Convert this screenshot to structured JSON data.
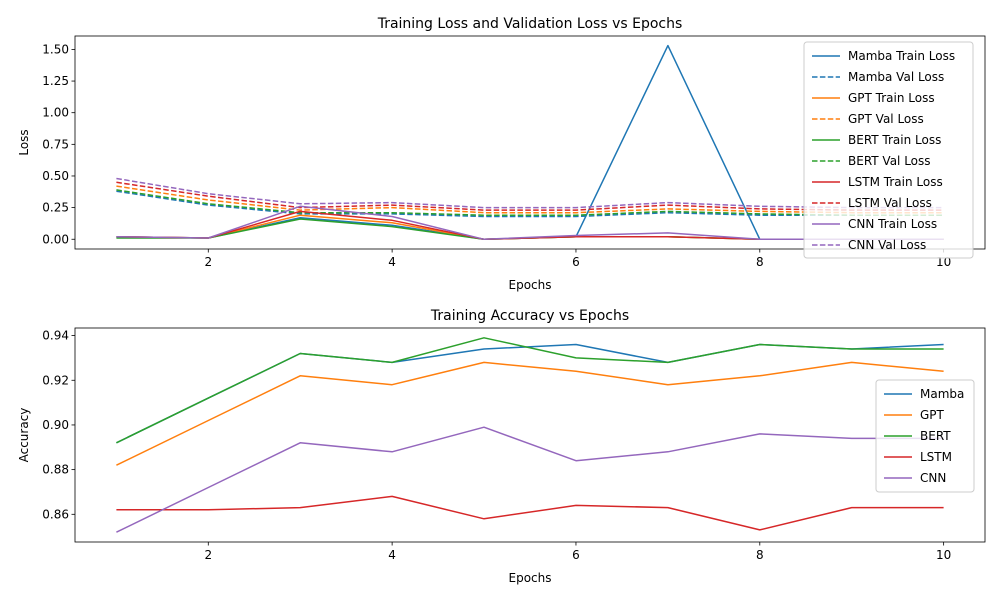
{
  "chart_data": [
    {
      "type": "line",
      "title": "Training Loss and Validation Loss vs Epochs",
      "xlabel": "Epochs",
      "ylabel": "Loss",
      "xlim": [
        0.55,
        10.45
      ],
      "ylim": [
        -0.077,
        1.606
      ],
      "xticks": [
        2,
        4,
        6,
        8,
        10
      ],
      "xtick_labels": [
        "2",
        "4",
        "6",
        "8",
        "10"
      ],
      "yticks": [
        0.0,
        0.25,
        0.5,
        0.75,
        1.0,
        1.25,
        1.5
      ],
      "ytick_labels": [
        "0.00",
        "0.25",
        "0.50",
        "0.75",
        "1.00",
        "1.25",
        "1.50"
      ],
      "grid": false,
      "legend_position": "upper-right",
      "x": [
        1,
        2,
        3,
        4,
        5,
        6,
        7,
        8,
        9,
        10
      ],
      "series": [
        {
          "name": "Mamba Train Loss",
          "color": "#1f77b4",
          "style": "solid",
          "values": [
            0.02,
            0.01,
            0.17,
            0.11,
            0.0,
            0.02,
            1.53,
            0.0,
            0.0,
            0.0
          ]
        },
        {
          "name": "Mamba Val Loss",
          "color": "#1f77b4",
          "style": "dashed",
          "values": [
            0.38,
            0.27,
            0.2,
            0.2,
            0.18,
            0.18,
            0.21,
            0.19,
            0.19,
            0.19
          ]
        },
        {
          "name": "GPT Train Loss",
          "color": "#ff7f0e",
          "style": "solid",
          "values": [
            0.02,
            0.01,
            0.19,
            0.13,
            0.0,
            0.02,
            0.02,
            0.0,
            0.0,
            0.0
          ]
        },
        {
          "name": "GPT Val Loss",
          "color": "#ff7f0e",
          "style": "dashed",
          "values": [
            0.42,
            0.31,
            0.23,
            0.25,
            0.21,
            0.21,
            0.24,
            0.22,
            0.21,
            0.21
          ]
        },
        {
          "name": "BERT Train Loss",
          "color": "#2ca02c",
          "style": "solid",
          "values": [
            0.01,
            0.01,
            0.16,
            0.1,
            0.0,
            0.02,
            0.02,
            0.0,
            0.0,
            0.0
          ]
        },
        {
          "name": "BERT Val Loss",
          "color": "#2ca02c",
          "style": "dashed",
          "values": [
            0.39,
            0.28,
            0.21,
            0.21,
            0.19,
            0.19,
            0.22,
            0.2,
            0.19,
            0.19
          ]
        },
        {
          "name": "LSTM Train Loss",
          "color": "#d62728",
          "style": "solid",
          "values": [
            0.02,
            0.01,
            0.22,
            0.15,
            0.0,
            0.02,
            0.02,
            0.0,
            0.0,
            0.0
          ]
        },
        {
          "name": "LSTM Val Loss",
          "color": "#d62728",
          "style": "dashed",
          "values": [
            0.45,
            0.34,
            0.25,
            0.27,
            0.23,
            0.23,
            0.27,
            0.24,
            0.23,
            0.23
          ]
        },
        {
          "name": "CNN Train Loss",
          "color": "#9467bd",
          "style": "solid",
          "values": [
            0.02,
            0.01,
            0.26,
            0.18,
            0.0,
            0.03,
            0.05,
            0.0,
            0.0,
            0.0
          ]
        },
        {
          "name": "CNN Val Loss",
          "color": "#9467bd",
          "style": "dashed",
          "values": [
            0.48,
            0.36,
            0.28,
            0.29,
            0.25,
            0.25,
            0.29,
            0.26,
            0.25,
            0.25
          ]
        }
      ]
    },
    {
      "type": "line",
      "title": "Training Accuracy vs Epochs",
      "xlabel": "Epochs",
      "ylabel": "Accuracy",
      "xlim": [
        0.55,
        10.45
      ],
      "ylim": [
        0.8476,
        0.9434
      ],
      "xticks": [
        2,
        4,
        6,
        8,
        10
      ],
      "xtick_labels": [
        "2",
        "4",
        "6",
        "8",
        "10"
      ],
      "yticks": [
        0.86,
        0.88,
        0.9,
        0.92,
        0.94
      ],
      "ytick_labels": [
        "0.86",
        "0.88",
        "0.90",
        "0.92",
        "0.94"
      ],
      "grid": false,
      "legend_position": "center-right",
      "x": [
        1,
        2,
        3,
        4,
        5,
        6,
        7,
        8,
        9,
        10
      ],
      "series": [
        {
          "name": "Mamba",
          "color": "#1f77b4",
          "style": "solid",
          "values": [
            0.892,
            0.912,
            0.932,
            0.928,
            0.934,
            0.936,
            0.928,
            0.936,
            0.934,
            0.936
          ]
        },
        {
          "name": "GPT",
          "color": "#ff7f0e",
          "style": "solid",
          "values": [
            0.882,
            0.902,
            0.922,
            0.918,
            0.928,
            0.924,
            0.918,
            0.922,
            0.928,
            0.924
          ]
        },
        {
          "name": "BERT",
          "color": "#2ca02c",
          "style": "solid",
          "values": [
            0.892,
            0.912,
            0.932,
            0.928,
            0.939,
            0.93,
            0.928,
            0.936,
            0.934,
            0.934
          ]
        },
        {
          "name": "LSTM",
          "color": "#d62728",
          "style": "solid",
          "values": [
            0.862,
            0.862,
            0.863,
            0.868,
            0.858,
            0.864,
            0.863,
            0.853,
            0.863,
            0.863
          ]
        },
        {
          "name": "CNN",
          "color": "#9467bd",
          "style": "solid",
          "values": [
            0.852,
            0.872,
            0.892,
            0.888,
            0.899,
            0.884,
            0.888,
            0.896,
            0.894,
            0.894
          ]
        }
      ]
    }
  ]
}
